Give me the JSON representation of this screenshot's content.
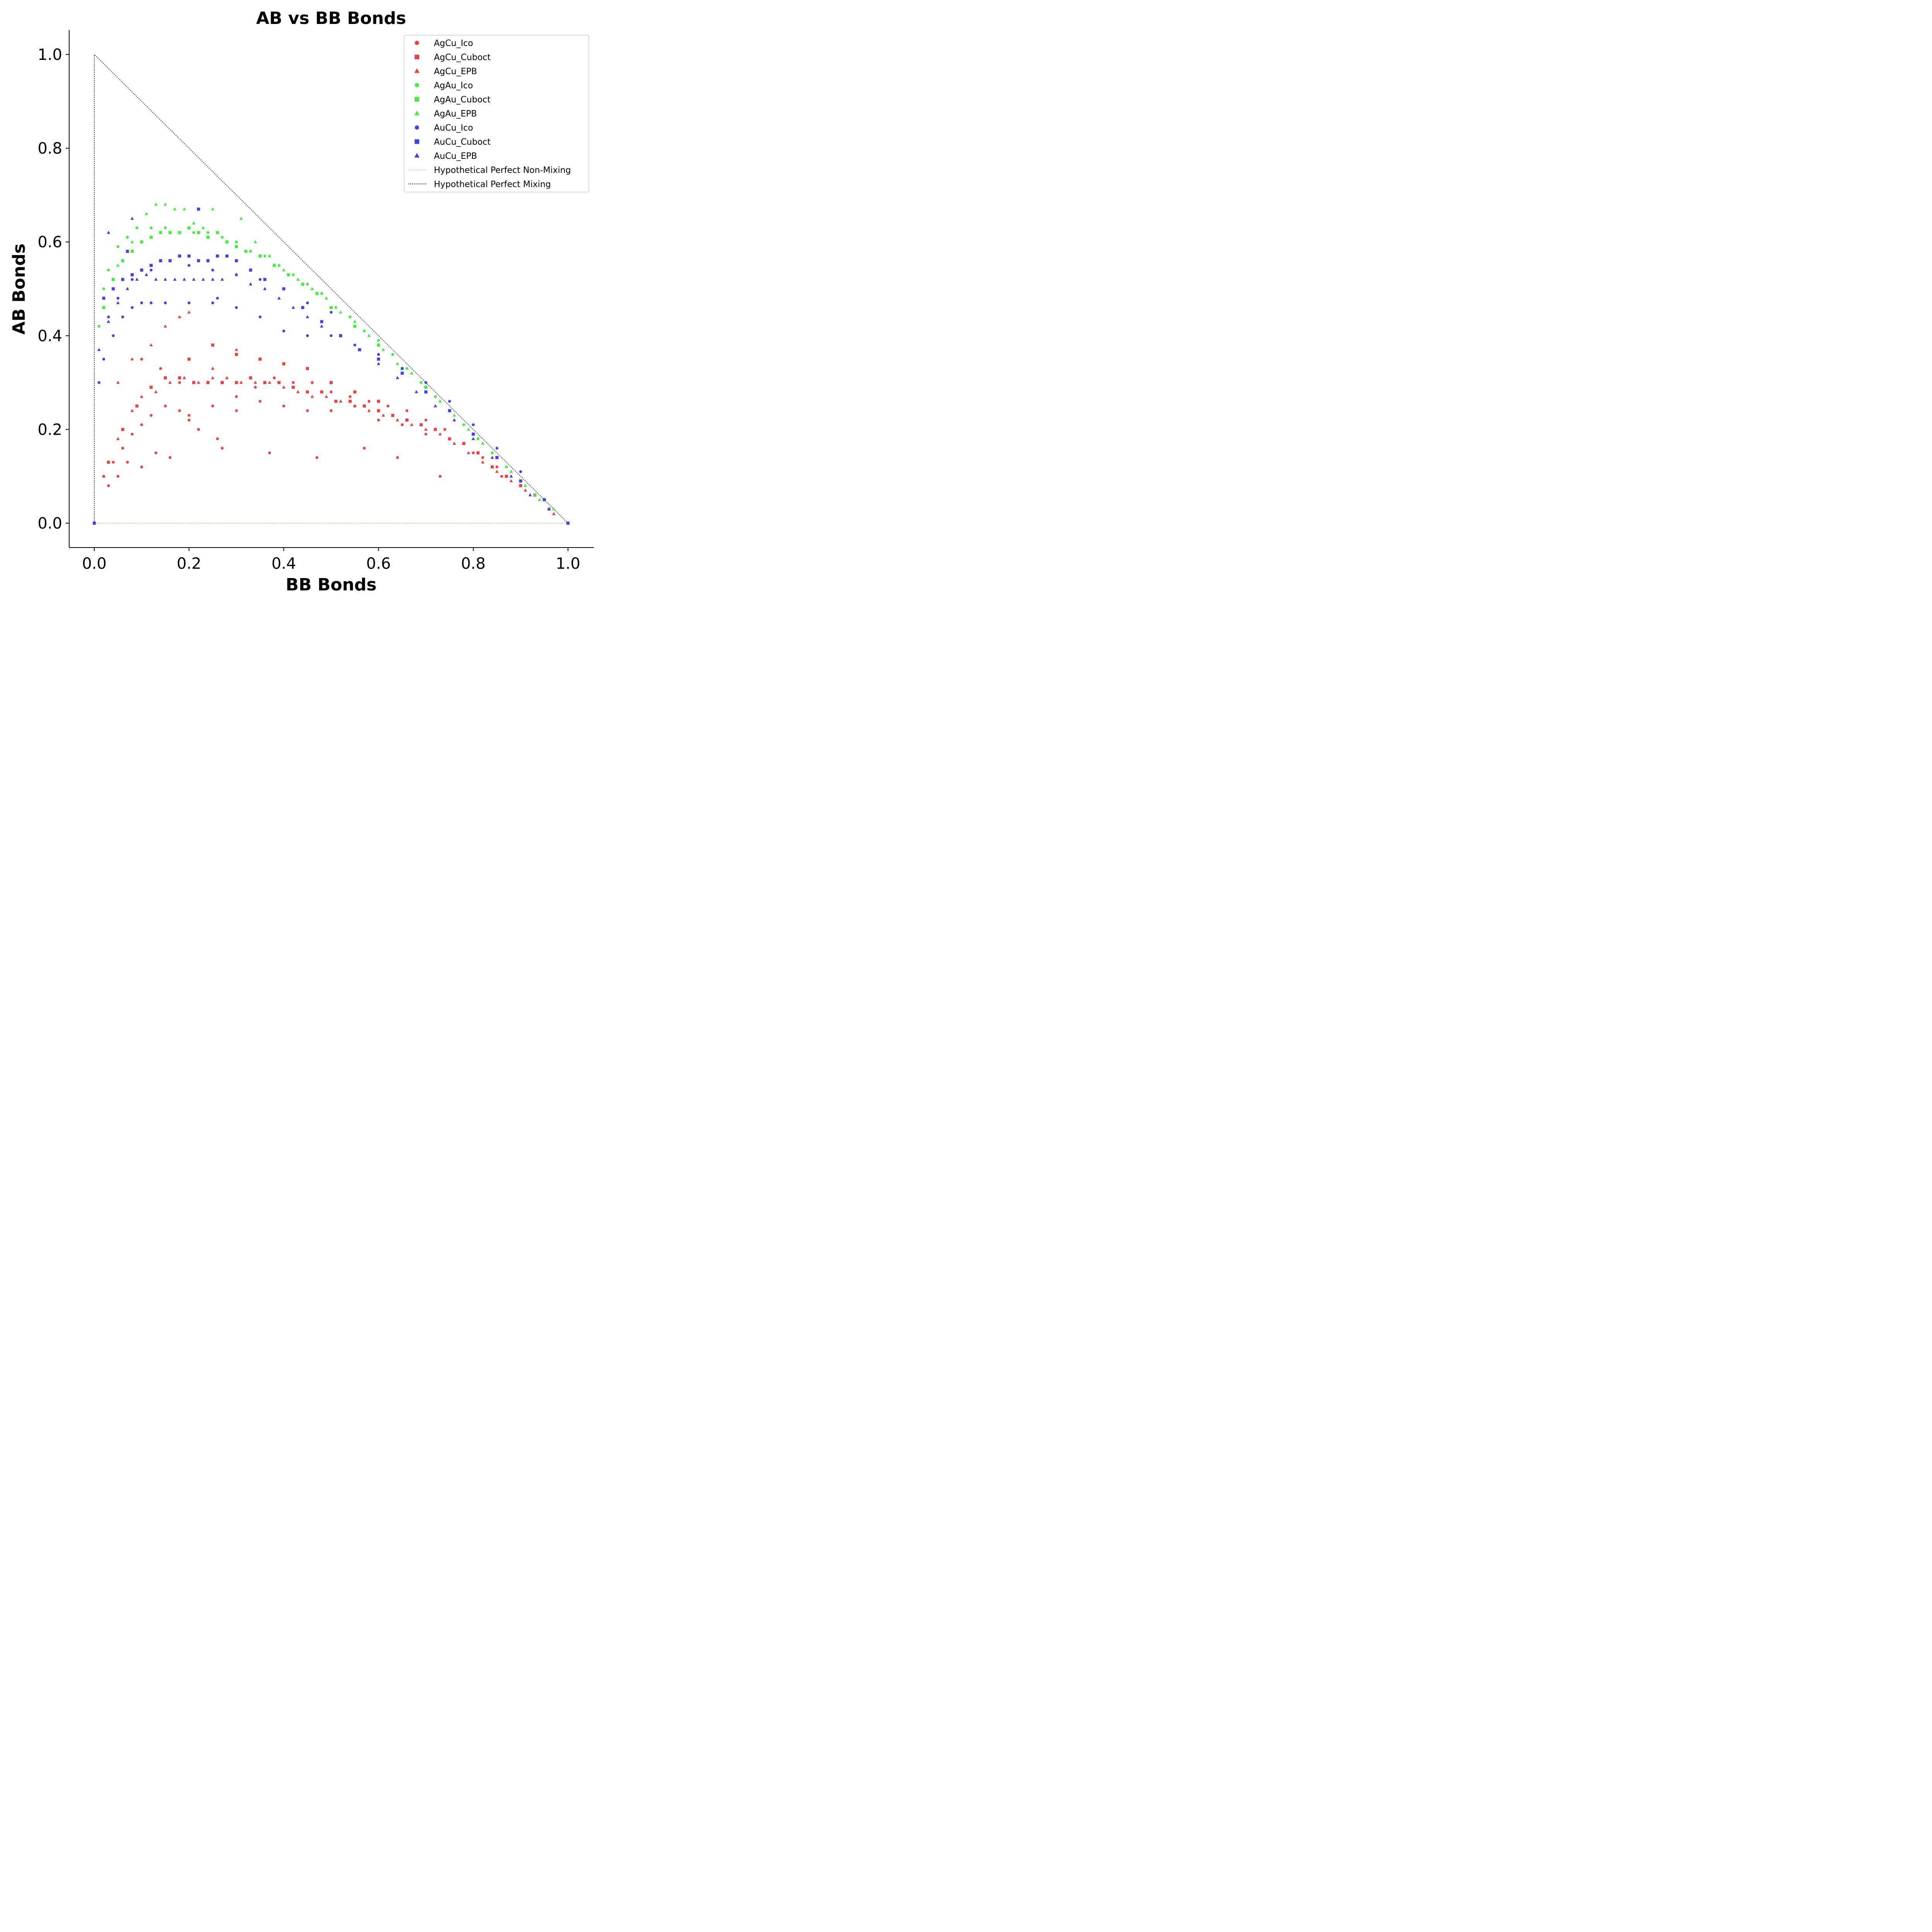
{
  "chart_data": {
    "type": "scatter",
    "title": "AB vs BB Bonds",
    "xlabel": "BB Bonds",
    "ylabel": "AB Bonds",
    "xlim": [
      -0.053,
      1.053
    ],
    "ylim": [
      -0.05,
      1.05
    ],
    "xticks": [
      "0.0",
      "0.2",
      "0.4",
      "0.6",
      "0.8",
      "1.0"
    ],
    "yticks": [
      "0.0",
      "0.2",
      "0.4",
      "0.6",
      "0.8",
      "1.0"
    ],
    "grid": false,
    "legend_position": "top-right",
    "series": [
      {
        "name": "AgCu_Ico",
        "marker": "hexagon",
        "color": "#ef4040",
        "x": [
          0.0,
          0.02,
          0.04,
          0.06,
          0.08,
          0.1,
          0.12,
          0.15,
          0.18,
          0.2,
          0.25,
          0.3,
          0.35,
          0.4,
          0.45,
          0.5,
          0.55,
          0.6,
          0.65,
          0.7,
          0.75,
          0.8,
          0.85,
          0.9,
          0.95,
          1.0,
          0.03,
          0.05,
          0.07,
          0.1,
          0.13,
          0.16,
          0.2,
          0.22,
          0.26,
          0.3,
          0.34,
          0.38,
          0.42,
          0.46,
          0.5,
          0.54,
          0.58,
          0.62,
          0.66,
          0.7,
          0.74,
          0.78,
          0.82,
          0.86,
          0.1,
          0.14,
          0.18,
          0.27,
          0.37,
          0.47,
          0.57,
          0.64,
          0.73
        ],
        "y": [
          0.0,
          0.1,
          0.13,
          0.16,
          0.19,
          0.21,
          0.23,
          0.25,
          0.24,
          0.23,
          0.25,
          0.24,
          0.26,
          0.25,
          0.24,
          0.24,
          0.25,
          0.22,
          0.21,
          0.19,
          0.18,
          0.15,
          0.12,
          0.08,
          0.05,
          0.0,
          0.08,
          0.1,
          0.13,
          0.12,
          0.15,
          0.14,
          0.22,
          0.2,
          0.18,
          0.27,
          0.29,
          0.31,
          0.3,
          0.3,
          0.28,
          0.27,
          0.26,
          0.25,
          0.24,
          0.22,
          0.2,
          0.17,
          0.14,
          0.1,
          0.35,
          0.33,
          0.3,
          0.16,
          0.15,
          0.14,
          0.16,
          0.14,
          0.1
        ]
      },
      {
        "name": "AgCu_Cuboct",
        "marker": "square",
        "color": "#ef4040",
        "x": [
          0.0,
          0.03,
          0.06,
          0.09,
          0.12,
          0.15,
          0.18,
          0.21,
          0.24,
          0.27,
          0.3,
          0.33,
          0.36,
          0.39,
          0.42,
          0.45,
          0.48,
          0.51,
          0.54,
          0.57,
          0.6,
          0.63,
          0.66,
          0.69,
          0.72,
          0.75,
          0.78,
          0.81,
          0.84,
          0.87,
          0.9,
          0.93,
          0.96,
          1.0,
          0.2,
          0.25,
          0.3,
          0.35,
          0.4,
          0.45,
          0.5,
          0.55,
          0.6
        ],
        "y": [
          0.0,
          0.13,
          0.2,
          0.25,
          0.29,
          0.31,
          0.31,
          0.3,
          0.3,
          0.3,
          0.3,
          0.31,
          0.3,
          0.3,
          0.29,
          0.28,
          0.28,
          0.26,
          0.26,
          0.25,
          0.24,
          0.23,
          0.22,
          0.21,
          0.2,
          0.18,
          0.17,
          0.15,
          0.12,
          0.1,
          0.08,
          0.06,
          0.03,
          0.0,
          0.35,
          0.38,
          0.36,
          0.35,
          0.34,
          0.33,
          0.3,
          0.28,
          0.26
        ]
      },
      {
        "name": "AgCu_EPB",
        "marker": "triangle",
        "color": "#ef4040",
        "x": [
          0.0,
          0.02,
          0.05,
          0.08,
          0.1,
          0.13,
          0.16,
          0.19,
          0.22,
          0.25,
          0.28,
          0.31,
          0.34,
          0.37,
          0.4,
          0.43,
          0.46,
          0.49,
          0.52,
          0.55,
          0.58,
          0.61,
          0.64,
          0.67,
          0.7,
          0.73,
          0.76,
          0.79,
          0.82,
          0.85,
          0.88,
          0.91,
          0.94,
          0.97,
          0.05,
          0.08,
          0.12,
          0.15,
          0.18,
          0.2,
          0.25,
          0.3,
          0.35
        ],
        "y": [
          0.0,
          0.1,
          0.18,
          0.24,
          0.27,
          0.28,
          0.3,
          0.31,
          0.3,
          0.31,
          0.31,
          0.3,
          0.3,
          0.3,
          0.29,
          0.28,
          0.27,
          0.27,
          0.26,
          0.25,
          0.24,
          0.23,
          0.22,
          0.21,
          0.2,
          0.19,
          0.17,
          0.15,
          0.13,
          0.11,
          0.09,
          0.07,
          0.05,
          0.02,
          0.3,
          0.35,
          0.38,
          0.42,
          0.44,
          0.45,
          0.33,
          0.37,
          0.35
        ]
      },
      {
        "name": "AgAu_Ico",
        "marker": "hexagon",
        "color": "#40ef40",
        "x": [
          0.0,
          0.01,
          0.02,
          0.03,
          0.05,
          0.07,
          0.09,
          0.12,
          0.15,
          0.18,
          0.21,
          0.24,
          0.27,
          0.3,
          0.33,
          0.36,
          0.39,
          0.42,
          0.45,
          0.48,
          0.51,
          0.54,
          0.57,
          0.6,
          0.63,
          0.66,
          0.69,
          0.72,
          0.75,
          0.78,
          0.81,
          0.84,
          0.87,
          0.9,
          0.93,
          0.96,
          1.0
        ],
        "y": [
          0.0,
          0.42,
          0.5,
          0.54,
          0.59,
          0.61,
          0.63,
          0.63,
          0.63,
          0.62,
          0.62,
          0.62,
          0.61,
          0.6,
          0.58,
          0.57,
          0.55,
          0.53,
          0.51,
          0.49,
          0.46,
          0.44,
          0.41,
          0.39,
          0.36,
          0.33,
          0.3,
          0.27,
          0.24,
          0.21,
          0.18,
          0.15,
          0.12,
          0.09,
          0.06,
          0.03,
          0.0
        ]
      },
      {
        "name": "AgAu_Cuboct",
        "marker": "square",
        "color": "#40ef40",
        "x": [
          0.0,
          0.02,
          0.04,
          0.06,
          0.08,
          0.1,
          0.12,
          0.14,
          0.16,
          0.18,
          0.2,
          0.22,
          0.24,
          0.26,
          0.28,
          0.3,
          0.32,
          0.35,
          0.38,
          0.41,
          0.44,
          0.47,
          0.5,
          0.55,
          0.6,
          0.65,
          0.7,
          0.75,
          0.8,
          0.85,
          0.9,
          0.95,
          1.0
        ],
        "y": [
          0.0,
          0.46,
          0.52,
          0.56,
          0.58,
          0.6,
          0.61,
          0.62,
          0.62,
          0.62,
          0.63,
          0.62,
          0.61,
          0.62,
          0.6,
          0.59,
          0.58,
          0.57,
          0.55,
          0.53,
          0.51,
          0.49,
          0.46,
          0.42,
          0.38,
          0.33,
          0.29,
          0.24,
          0.19,
          0.14,
          0.09,
          0.05,
          0.0
        ]
      },
      {
        "name": "AgAu_EPB",
        "marker": "triangle",
        "color": "#40ef40",
        "x": [
          0.0,
          0.02,
          0.05,
          0.08,
          0.11,
          0.13,
          0.15,
          0.17,
          0.19,
          0.21,
          0.23,
          0.25,
          0.28,
          0.31,
          0.34,
          0.37,
          0.4,
          0.43,
          0.46,
          0.49,
          0.52,
          0.55,
          0.58,
          0.61,
          0.64,
          0.67,
          0.7,
          0.73,
          0.76,
          0.79,
          0.82,
          0.85,
          0.88,
          0.91,
          0.94,
          0.97
        ],
        "y": [
          0.0,
          0.48,
          0.55,
          0.6,
          0.66,
          0.68,
          0.68,
          0.67,
          0.67,
          0.64,
          0.63,
          0.67,
          0.6,
          0.65,
          0.6,
          0.57,
          0.54,
          0.52,
          0.5,
          0.48,
          0.45,
          0.43,
          0.4,
          0.37,
          0.34,
          0.32,
          0.29,
          0.26,
          0.23,
          0.2,
          0.17,
          0.14,
          0.11,
          0.08,
          0.05,
          0.03
        ]
      },
      {
        "name": "AuCu_Ico",
        "marker": "hexagon",
        "color": "#4040ef",
        "x": [
          0.0,
          0.01,
          0.02,
          0.04,
          0.06,
          0.08,
          0.1,
          0.12,
          0.15,
          0.2,
          0.25,
          0.26,
          0.3,
          0.35,
          0.4,
          0.45,
          0.5,
          0.55,
          0.6,
          0.65,
          0.7,
          0.75,
          0.8,
          0.85,
          0.9,
          0.95,
          1.0,
          0.03,
          0.05,
          0.08,
          0.12,
          0.16,
          0.2,
          0.25,
          0.3,
          0.35,
          0.4,
          0.45,
          0.5
        ],
        "y": [
          0.0,
          0.3,
          0.35,
          0.4,
          0.44,
          0.46,
          0.47,
          0.47,
          0.47,
          0.47,
          0.47,
          0.48,
          0.46,
          0.44,
          0.41,
          0.4,
          0.4,
          0.38,
          0.36,
          0.33,
          0.3,
          0.26,
          0.21,
          0.16,
          0.11,
          0.05,
          0.0,
          0.44,
          0.48,
          0.52,
          0.54,
          0.56,
          0.55,
          0.54,
          0.53,
          0.52,
          0.5,
          0.47,
          0.45
        ]
      },
      {
        "name": "AuCu_Cuboct",
        "marker": "square",
        "color": "#4040ef",
        "x": [
          0.0,
          0.02,
          0.04,
          0.06,
          0.08,
          0.1,
          0.12,
          0.14,
          0.16,
          0.18,
          0.2,
          0.22,
          0.24,
          0.26,
          0.28,
          0.3,
          0.33,
          0.36,
          0.4,
          0.44,
          0.48,
          0.52,
          0.56,
          0.6,
          0.65,
          0.7,
          0.75,
          0.8,
          0.85,
          0.9,
          0.95,
          1.0,
          0.22,
          0.07
        ],
        "y": [
          0.0,
          0.48,
          0.5,
          0.52,
          0.53,
          0.54,
          0.55,
          0.56,
          0.56,
          0.57,
          0.57,
          0.56,
          0.56,
          0.57,
          0.57,
          0.56,
          0.54,
          0.52,
          0.5,
          0.46,
          0.43,
          0.4,
          0.37,
          0.35,
          0.32,
          0.28,
          0.24,
          0.19,
          0.14,
          0.09,
          0.05,
          0.0,
          0.67,
          0.58
        ]
      },
      {
        "name": "AuCu_EPB",
        "marker": "triangle",
        "color": "#4040ef",
        "x": [
          0.0,
          0.01,
          0.03,
          0.05,
          0.07,
          0.09,
          0.11,
          0.13,
          0.15,
          0.17,
          0.19,
          0.21,
          0.23,
          0.25,
          0.27,
          0.3,
          0.33,
          0.36,
          0.39,
          0.42,
          0.45,
          0.48,
          0.52,
          0.56,
          0.6,
          0.64,
          0.68,
          0.72,
          0.76,
          0.8,
          0.84,
          0.88,
          0.92,
          0.96,
          0.03,
          0.08
        ],
        "y": [
          0.0,
          0.37,
          0.43,
          0.47,
          0.5,
          0.52,
          0.53,
          0.52,
          0.52,
          0.52,
          0.52,
          0.52,
          0.52,
          0.52,
          0.52,
          0.53,
          0.51,
          0.5,
          0.48,
          0.46,
          0.44,
          0.42,
          0.4,
          0.37,
          0.34,
          0.31,
          0.28,
          0.25,
          0.22,
          0.18,
          0.14,
          0.1,
          0.06,
          0.03,
          0.62,
          0.65
        ]
      }
    ],
    "reference_lines": [
      {
        "name": "Hypothetical Perfect Non-Mixing",
        "style": "dotted",
        "color": "#d2b48c",
        "x": [
          0.0,
          1.0
        ],
        "y": [
          0.0,
          0.0
        ]
      },
      {
        "name": "Hypothetical Perfect Mixing",
        "style": "dotted",
        "color": "#1a1a40",
        "x": [
          0.0,
          0.0,
          1.0
        ],
        "y": [
          0.0,
          1.0,
          0.0
        ]
      }
    ]
  }
}
